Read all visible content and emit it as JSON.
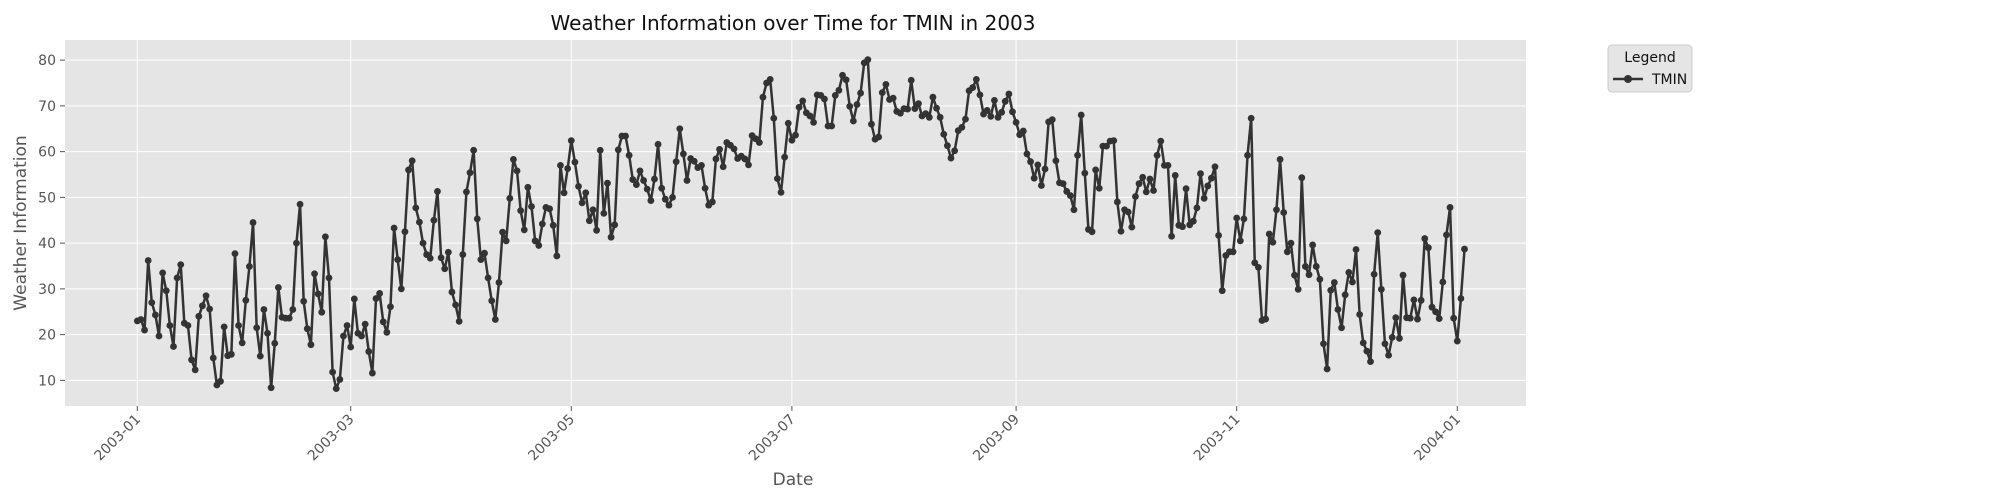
{
  "chart_data": {
    "type": "line",
    "title": "Weather Information over Time for TMIN in 2003",
    "xlabel": "Date",
    "ylabel": "Weather Information",
    "x_tick_labels": [
      "2003-01",
      "2003-03",
      "2003-05",
      "2003-07",
      "2003-09",
      "2003-11",
      "2004-01"
    ],
    "y_ticks": [
      10,
      20,
      30,
      40,
      50,
      60,
      70,
      80
    ],
    "xlim": [
      "2002-12-12",
      "2004-01-20"
    ],
    "ylim": [
      4.4,
      84.4
    ],
    "grid": true,
    "legend": {
      "title": "Legend",
      "placement": "outside-top-right",
      "entries": [
        "TMIN"
      ]
    },
    "colors": {
      "series": "#333333",
      "plot_background": "#e5e5e5",
      "grid": "#ffffff"
    },
    "series": [
      {
        "name": "TMIN",
        "start_date": "2003-01-01",
        "step_days": 1,
        "values": [
          23,
          23.3,
          21,
          36.2,
          27,
          24.3,
          19.7,
          33.5,
          29.6,
          22,
          17.4,
          32.4,
          35.3,
          22.5,
          22,
          14.5,
          12.3,
          24,
          26.3,
          28.5,
          25.6,
          14.9,
          9,
          9.8,
          21.7,
          15.4,
          15.7,
          37.7,
          22,
          18.2,
          27.5,
          34.9,
          44.5,
          21.5,
          15.3,
          25.5,
          20.3,
          8.4,
          18.1,
          30.3,
          23.8,
          23.6,
          23.6,
          25.5,
          40,
          48.5,
          27.3,
          21.3,
          17.8,
          33.3,
          28.9,
          24.9,
          41.4,
          32.4,
          11.8,
          8.2,
          10.2,
          19.7,
          22,
          17.3,
          27.8,
          20.3,
          19.7,
          22.3,
          16.3,
          11.6,
          27.9,
          29,
          22.8,
          20.5,
          26.1,
          43.3,
          36.4,
          30,
          42.5,
          56,
          58,
          47.7,
          44.6,
          40,
          37.5,
          36.7,
          45,
          51.3,
          36.8,
          34.4,
          38,
          29.3,
          26.5,
          22.9,
          37.5,
          51.2,
          55.4,
          60.3,
          45.3,
          36.4,
          37.8,
          32.4,
          27.4,
          23.3,
          31.4,
          42.4,
          40.5,
          49.8,
          58.3,
          55.8,
          47.1,
          42.9,
          52.2,
          48,
          40.5,
          39.5,
          44.2,
          47.8,
          47.5,
          43.9,
          37.2,
          57,
          51,
          56.3,
          62.4,
          57.7,
          52.4,
          48.8,
          51,
          44.9,
          47.3,
          42.8,
          60.3,
          46.5,
          53.1,
          41.3,
          44,
          60.4,
          63.4,
          63.4,
          59.2,
          53.9,
          52.8,
          55.8,
          53.7,
          51.8,
          49.3,
          54,
          61.6,
          52,
          49.6,
          48.3,
          50,
          57.8,
          65,
          59.5,
          53.7,
          58.5,
          57.9,
          56.5,
          57,
          52,
          48.3,
          49,
          58.4,
          60.5,
          56.7,
          62,
          61.4,
          60.6,
          58.5,
          59,
          58.4,
          57.1,
          63.5,
          62.8,
          62,
          71.9,
          75,
          75.8,
          67.3,
          54.1,
          51.1,
          58.8,
          66.2,
          62.5,
          63.6,
          69.7,
          71.1,
          68.5,
          67.8,
          66.4,
          72.4,
          72.3,
          71.5,
          65.6,
          65.6,
          72.3,
          73.4,
          76.7,
          75.7,
          69.9,
          66.7,
          70.3,
          72.8,
          79.4,
          80.1,
          66,
          62.7,
          63.2,
          72.9,
          74.7,
          71.4,
          71.7,
          68.8,
          68.4,
          69.4,
          69.3,
          75.6,
          69.4,
          70.5,
          67.8,
          68.3,
          67.5,
          71.9,
          69.5,
          67.5,
          63.8,
          61.3,
          58.6,
          60.2,
          64.6,
          65.3,
          67.1,
          73.3,
          74,
          75.8,
          72.4,
          68.2,
          69,
          67.7,
          71.2,
          67.5,
          68.6,
          71,
          72.6,
          68.7,
          66.4,
          63.7,
          64.5,
          59.5,
          57.8,
          54.2,
          57.1,
          52.6,
          56.2,
          66.5,
          67,
          58,
          53.2,
          53,
          51.3,
          50.4,
          47.3,
          59.2,
          68,
          55.3,
          43,
          42.5,
          56,
          52,
          61.2,
          61.2,
          62.3,
          62.4,
          49,
          42.6,
          47.3,
          46.8,
          43.5,
          50.2,
          53,
          54.4,
          51.2,
          54,
          51.5,
          59.2,
          62.3,
          57,
          57,
          41.5,
          54.8,
          43.9,
          43.6,
          51.9,
          44,
          44.8,
          47.7,
          55.2,
          49.8,
          52.5,
          54.2,
          56.7,
          41.7,
          29.6,
          37.3,
          38.1,
          38.1,
          45.5,
          40.5,
          45.3,
          59.2,
          67.3,
          35.7,
          34.7,
          23.1,
          23.4,
          42,
          40.2,
          47.3,
          58.3,
          46.7,
          38.1,
          40,
          33,
          29.9,
          54.3,
          34.9,
          33.1,
          39.6,
          34.9,
          32.1,
          18,
          12.5,
          29.7,
          31.4,
          25.5,
          21.5,
          28.7,
          33.6,
          31.5,
          38.6,
          24.4,
          18.2,
          16.4,
          14.1,
          33.2,
          42.3,
          29.9,
          18,
          15.5,
          19.4,
          23.7,
          19.2,
          33,
          23.7,
          23.6,
          27.6,
          23.4,
          27.5,
          41,
          39,
          26,
          25,
          23.5,
          31.5,
          41.8,
          47.8,
          23.6,
          18.6,
          27.9,
          38.7
        ]
      }
    ]
  }
}
